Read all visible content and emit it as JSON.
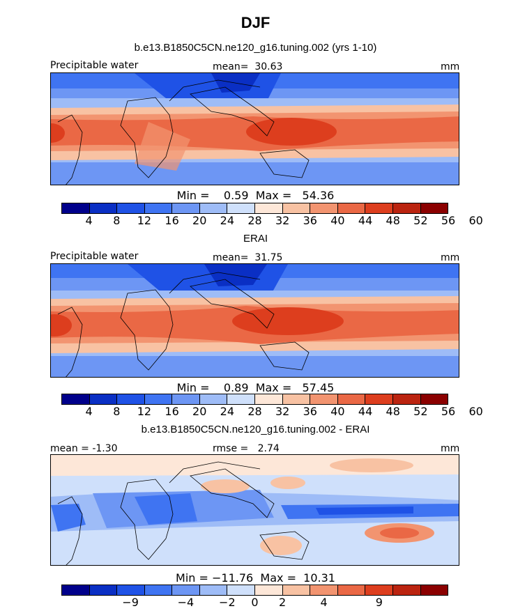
{
  "figure": {
    "title": "DJF"
  },
  "panels": [
    {
      "title": "b.e13.B1850C5CN.ne120_g16.tuning.002 (yrs 1-10)",
      "left_label": "Precipitable water",
      "center_label": "mean=  30.63",
      "right_label": "mm",
      "minmax": "Min =    0.59  Max =   54.36",
      "colorbar_ticks": [
        "4",
        "8",
        "12",
        "16",
        "20",
        "24",
        "28",
        "32",
        "36",
        "40",
        "44",
        "48",
        "52",
        "56",
        "60"
      ]
    },
    {
      "title": "ERAI",
      "left_label": "Precipitable water",
      "center_label": "mean=  31.75",
      "right_label": "mm",
      "minmax": "Min =    0.89  Max =   57.45",
      "colorbar_ticks": [
        "4",
        "8",
        "12",
        "16",
        "20",
        "24",
        "28",
        "32",
        "36",
        "40",
        "44",
        "48",
        "52",
        "56",
        "60"
      ]
    },
    {
      "title": "b.e13.B1850C5CN.ne120_g16.tuning.002 - ERAI",
      "left_label": "mean = -1.30",
      "center_label": "rmse =   2.74",
      "right_label": "mm",
      "minmax": "Min = −11.76  Max =  10.31",
      "colorbar_ticks": [
        "−9",
        "−4",
        "−2",
        "0",
        "2",
        "4",
        "9"
      ]
    }
  ],
  "colors": {
    "full_scale": [
      "#00008b",
      "#0a2fc4",
      "#1f52e6",
      "#3f74f2",
      "#6d96f4",
      "#9ebcf7",
      "#cfe0fb",
      "#fde7d8",
      "#f8c2a3",
      "#f29470",
      "#ea6845",
      "#dd3e1e",
      "#bb2410",
      "#8b0000"
    ],
    "diff_scale": [
      "#00008b",
      "#0a2fc4",
      "#1f52e6",
      "#3f74f2",
      "#6d96f4",
      "#9ebcf7",
      "#cfe0fb",
      "#fde7d8",
      "#f8c2a3",
      "#f29470",
      "#ea6845",
      "#dd3e1e",
      "#bb2410",
      "#8b0000"
    ]
  },
  "chart_data": [
    {
      "type": "heatmap",
      "title": "b.e13.B1850C5CN.ne120_g16.tuning.002 (yrs 1-10)",
      "variable": "Precipitable water",
      "units": "mm",
      "mean": 30.63,
      "min": 0.59,
      "max": 54.36,
      "levels": [
        4,
        8,
        12,
        16,
        20,
        24,
        28,
        32,
        36,
        40,
        44,
        48,
        52,
        56,
        60
      ]
    },
    {
      "type": "heatmap",
      "title": "ERAI",
      "variable": "Precipitable water",
      "units": "mm",
      "mean": 31.75,
      "min": 0.89,
      "max": 57.45,
      "levels": [
        4,
        8,
        12,
        16,
        20,
        24,
        28,
        32,
        36,
        40,
        44,
        48,
        52,
        56,
        60
      ]
    },
    {
      "type": "heatmap",
      "title": "b.e13.B1850C5CN.ne120_g16.tuning.002 - ERAI",
      "units": "mm",
      "mean": -1.3,
      "rmse": 2.74,
      "min": -11.76,
      "max": 10.31,
      "levels": [
        -9,
        -4,
        -2,
        0,
        2,
        4,
        9
      ]
    }
  ]
}
